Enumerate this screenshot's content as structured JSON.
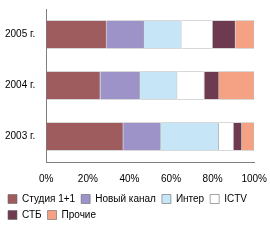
{
  "chart_data": {
    "type": "bar",
    "orientation": "horizontal",
    "stacked": true,
    "grid": false,
    "legend": "bottom",
    "categories": [
      "2005 г.",
      "2004 г.",
      "2003 г."
    ],
    "series": [
      {
        "name": "Студия 1+1",
        "color": "#9e5c5e",
        "values": [
          29,
          26,
          37
        ]
      },
      {
        "name": "Новый канал",
        "color": "#9d93c8",
        "values": [
          18,
          19,
          18
        ]
      },
      {
        "name": "Интер",
        "color": "#c6e5f6",
        "values": [
          18,
          18,
          28
        ]
      },
      {
        "name": "ICTV",
        "color": "#ffffff",
        "values": [
          15,
          13,
          7
        ]
      },
      {
        "name": "СТБ",
        "color": "#6e3a50",
        "values": [
          11,
          7,
          4
        ]
      },
      {
        "name": "Прочие",
        "color": "#f4a283",
        "values": [
          9,
          17,
          6
        ]
      }
    ],
    "xlim": [
      0,
      100
    ],
    "xticks": [
      {
        "value": 0,
        "label": "0%"
      },
      {
        "value": 20,
        "label": "20%"
      },
      {
        "value": 40,
        "label": "40%"
      },
      {
        "value": 60,
        "label": "60%"
      },
      {
        "value": 80,
        "label": "80%"
      },
      {
        "value": 100,
        "label": "100%"
      }
    ]
  }
}
